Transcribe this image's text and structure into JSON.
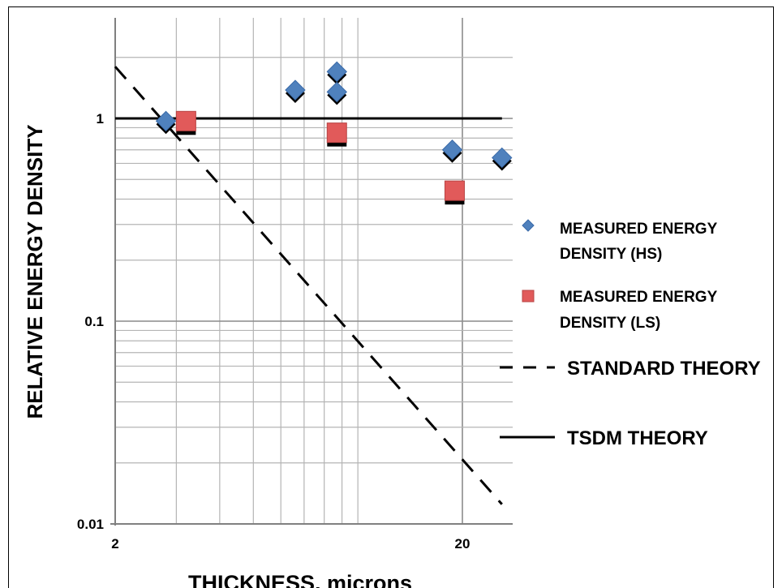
{
  "chart_data": {
    "type": "scatter",
    "title": "",
    "xlabel": "THICKNESS, microns",
    "ylabel": "RELATIVE ENERGY DENSITY",
    "x_scale": "log",
    "y_scale": "log",
    "xlim": [
      2,
      26
    ],
    "ylim": [
      0.01,
      3
    ],
    "x_ticks": [
      {
        "value": 2,
        "label": "2"
      },
      {
        "value": 20,
        "label": "20"
      }
    ],
    "y_ticks": [
      {
        "value": 0.01,
        "label": "0.01"
      },
      {
        "value": 0.1,
        "label": "0.1"
      },
      {
        "value": 1,
        "label": "1"
      }
    ],
    "grid": true,
    "legend_position": "right",
    "series": [
      {
        "name": "MEASURED  ENERGY DENSITY (HS)",
        "kind": "markers",
        "marker": "diamond",
        "color": "#4f81bd",
        "points": [
          {
            "x": 2.8,
            "y": 0.97
          },
          {
            "x": 6.6,
            "y": 1.38
          },
          {
            "x": 8.7,
            "y": 1.7
          },
          {
            "x": 8.7,
            "y": 1.35
          },
          {
            "x": 18.7,
            "y": 0.7
          },
          {
            "x": 26.0,
            "y": 0.64
          }
        ]
      },
      {
        "name": "MEASURED ENERGY DENSITY (LS)",
        "kind": "markers",
        "marker": "square",
        "color": "#e15a5a",
        "points": [
          {
            "x": 3.2,
            "y": 0.97
          },
          {
            "x": 8.7,
            "y": 0.85
          },
          {
            "x": 19.0,
            "y": 0.44
          }
        ]
      },
      {
        "name": "STANDARD THEORY",
        "kind": "line",
        "style": "dashed",
        "color": "#000000",
        "points": [
          {
            "x": 2,
            "y": 1.8
          },
          {
            "x": 26,
            "y": 0.0125
          }
        ]
      },
      {
        "name": "TSDM THEORY",
        "kind": "line",
        "style": "solid",
        "color": "#000000",
        "points": [
          {
            "x": 2,
            "y": 1
          },
          {
            "x": 26,
            "y": 1
          }
        ]
      }
    ],
    "legend": {
      "hs_line1": "MEASURED  ENERGY",
      "hs_line2": "DENSITY (HS)",
      "ls_line1": "MEASURED ENERGY",
      "ls_line2": "DENSITY (LS)",
      "standard": "STANDARD THEORY",
      "tsdm": "TSDM THEORY"
    }
  }
}
